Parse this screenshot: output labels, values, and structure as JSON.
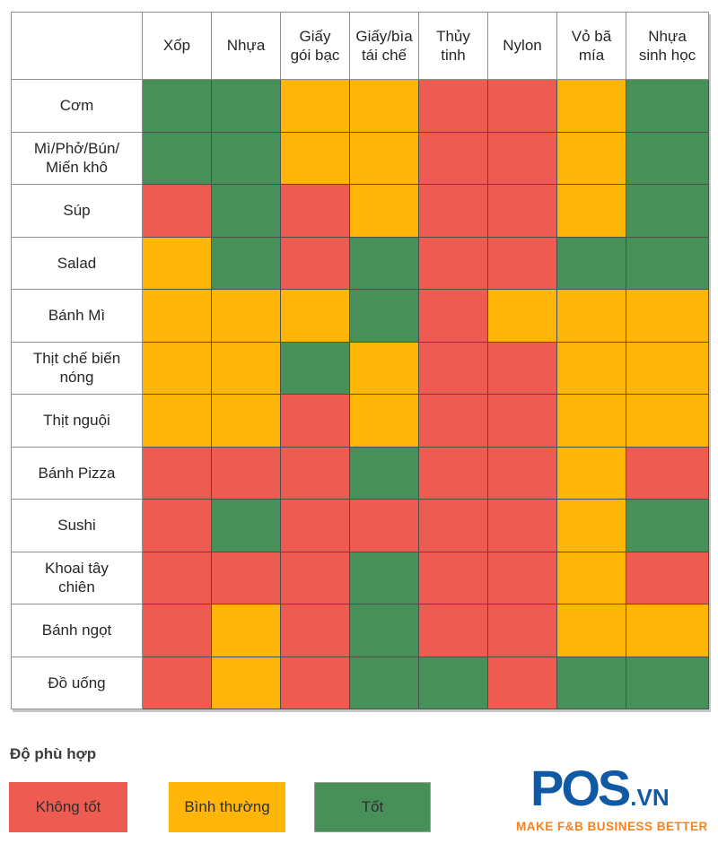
{
  "colors": {
    "bad": "#EE5B50",
    "normal": "#FFB608",
    "good": "#47905A",
    "logo_blue": "#1059A5",
    "logo_orange": "#F58220"
  },
  "chart_data": {
    "type": "heatmap",
    "title": "",
    "columns": [
      "Xốp",
      "Nhựa",
      "Giấy\ngói bạc",
      "Giấy/bìa\ntái chế",
      "Thủy\ntinh",
      "Nylon",
      "Vỏ bã\nmía",
      "Nhựa\nsinh học"
    ],
    "rows": [
      "Cơm",
      "Mì/Phở/Bún/\nMiến khô",
      "Súp",
      "Salad",
      "Bánh Mì",
      "Thịt chế biến\nnóng",
      "Thịt nguội",
      "Bánh Pizza",
      "Sushi",
      "Khoai tây\nchiên",
      "Bánh ngọt",
      "Đồ uống"
    ],
    "values": [
      [
        "good",
        "good",
        "normal",
        "normal",
        "bad",
        "bad",
        "normal",
        "good"
      ],
      [
        "good",
        "good",
        "normal",
        "normal",
        "bad",
        "bad",
        "normal",
        "good"
      ],
      [
        "bad",
        "good",
        "bad",
        "normal",
        "bad",
        "bad",
        "normal",
        "good"
      ],
      [
        "normal",
        "good",
        "bad",
        "good",
        "bad",
        "bad",
        "good",
        "good"
      ],
      [
        "normal",
        "normal",
        "normal",
        "good",
        "bad",
        "normal",
        "normal",
        "normal"
      ],
      [
        "normal",
        "normal",
        "good",
        "normal",
        "bad",
        "bad",
        "normal",
        "normal"
      ],
      [
        "normal",
        "normal",
        "bad",
        "normal",
        "bad",
        "bad",
        "normal",
        "normal"
      ],
      [
        "bad",
        "bad",
        "bad",
        "good",
        "bad",
        "bad",
        "normal",
        "bad"
      ],
      [
        "bad",
        "good",
        "bad",
        "bad",
        "bad",
        "bad",
        "normal",
        "good"
      ],
      [
        "bad",
        "bad",
        "bad",
        "good",
        "bad",
        "bad",
        "normal",
        "bad"
      ],
      [
        "bad",
        "normal",
        "bad",
        "good",
        "bad",
        "bad",
        "normal",
        "normal"
      ],
      [
        "bad",
        "normal",
        "bad",
        "good",
        "good",
        "bad",
        "good",
        "good"
      ]
    ],
    "value_legend": {
      "bad": "Không tốt",
      "normal": "Bình thường",
      "good": "Tốt"
    },
    "legend_position": "bottom-left",
    "grid": true
  },
  "legend": {
    "title": "Độ phù hợp",
    "items": [
      {
        "label": "Không tốt",
        "value": "bad"
      },
      {
        "label": "Bình thường",
        "value": "normal"
      },
      {
        "label": "Tốt",
        "value": "good"
      }
    ]
  },
  "logo": {
    "brand_pos": "POS",
    "brand_tld": ".vn",
    "tagline": "MAKE F&B BUSINESS BETTER"
  }
}
